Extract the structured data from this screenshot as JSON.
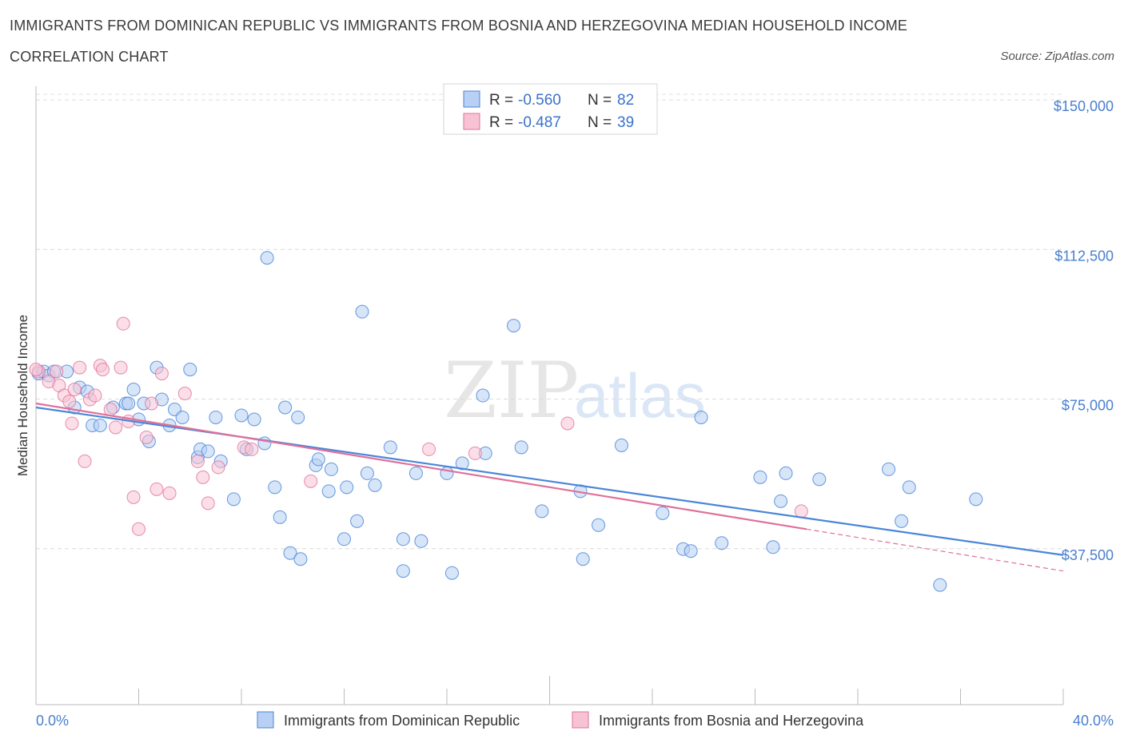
{
  "header": {
    "title": "IMMIGRANTS FROM DOMINICAN REPUBLIC VS IMMIGRANTS FROM BOSNIA AND HERZEGOVINA MEDIAN HOUSEHOLD INCOME",
    "subtitle": "CORRELATION CHART",
    "source": "Source: ZipAtlas.com"
  },
  "watermark": {
    "zip": "ZIP",
    "atlas": "atlas"
  },
  "colors": {
    "blue": "#4a86d8",
    "blue_fill": "#b7d0f3",
    "pink": "#e0709a",
    "pink_fill": "#f7c3d4",
    "grid": "#dddddd",
    "tick_label": "#4a7fd0"
  },
  "legend": {
    "rows": [
      {
        "r_label": "R = ",
        "r_value": "-0.560",
        "n_label": "N = ",
        "n_value": "82"
      },
      {
        "r_label": "R = ",
        "r_value": "-0.487",
        "n_label": "N = ",
        "n_value": "39"
      }
    ]
  },
  "chart_data": {
    "type": "scatter",
    "title": "IMMIGRANTS FROM DOMINICAN REPUBLIC VS IMMIGRANTS FROM BOSNIA AND HERZEGOVINA MEDIAN HOUSEHOLD INCOME",
    "xlabel": "",
    "ylabel": "Median Household Income",
    "xlim": [
      0,
      40
    ],
    "ylim": [
      0,
      150000
    ],
    "x_tick_labels": {
      "min": "0.0%",
      "max": "40.0%"
    },
    "y_ticks": [
      {
        "value": 37500,
        "label": "$37,500"
      },
      {
        "value": 75000,
        "label": "$75,000"
      },
      {
        "value": 112500,
        "label": "$112,500"
      },
      {
        "value": 150000,
        "label": "$150,000"
      }
    ],
    "grid": true,
    "series": [
      {
        "name": "Immigrants from Dominican Republic",
        "color": "#4a86d8",
        "trend": {
          "x0": 0,
          "y0": 74500,
          "x1": 40,
          "y1": 37500,
          "dashed_from": null
        },
        "points": [
          [
            0.1,
            83000
          ],
          [
            0.3,
            83500
          ],
          [
            0.5,
            82500
          ],
          [
            0.7,
            83500
          ],
          [
            1.2,
            83500
          ],
          [
            1.5,
            74500
          ],
          [
            1.7,
            79500
          ],
          [
            2.0,
            78500
          ],
          [
            2.2,
            70000
          ],
          [
            2.5,
            70000
          ],
          [
            3.0,
            74500
          ],
          [
            3.5,
            75500
          ],
          [
            3.6,
            75500
          ],
          [
            3.8,
            79000
          ],
          [
            4.0,
            71500
          ],
          [
            4.2,
            75500
          ],
          [
            4.4,
            66000
          ],
          [
            4.7,
            84500
          ],
          [
            4.9,
            76500
          ],
          [
            5.2,
            70000
          ],
          [
            5.4,
            74000
          ],
          [
            5.7,
            72000
          ],
          [
            6.0,
            84000
          ],
          [
            6.3,
            62000
          ],
          [
            6.4,
            64000
          ],
          [
            6.7,
            63500
          ],
          [
            7.0,
            72000
          ],
          [
            7.2,
            61000
          ],
          [
            7.7,
            51500
          ],
          [
            8.0,
            72500
          ],
          [
            8.2,
            64000
          ],
          [
            8.5,
            71500
          ],
          [
            8.9,
            65500
          ],
          [
            9.0,
            112000
          ],
          [
            9.3,
            54500
          ],
          [
            9.5,
            47000
          ],
          [
            9.7,
            74500
          ],
          [
            9.9,
            38000
          ],
          [
            10.2,
            72000
          ],
          [
            10.3,
            36500
          ],
          [
            10.9,
            60000
          ],
          [
            11.0,
            61500
          ],
          [
            11.4,
            53500
          ],
          [
            11.5,
            59000
          ],
          [
            12.0,
            41500
          ],
          [
            12.1,
            54500
          ],
          [
            12.5,
            46000
          ],
          [
            12.7,
            98500
          ],
          [
            12.9,
            58000
          ],
          [
            13.2,
            55000
          ],
          [
            13.8,
            64500
          ],
          [
            14.3,
            41500
          ],
          [
            14.3,
            33500
          ],
          [
            14.8,
            58000
          ],
          [
            15.0,
            41000
          ],
          [
            16.0,
            58000
          ],
          [
            16.2,
            33000
          ],
          [
            16.6,
            60500
          ],
          [
            17.4,
            77500
          ],
          [
            17.5,
            63000
          ],
          [
            18.6,
            95000
          ],
          [
            18.9,
            64500
          ],
          [
            19.7,
            48500
          ],
          [
            21.2,
            53500
          ],
          [
            21.3,
            36500
          ],
          [
            21.9,
            45000
          ],
          [
            22.8,
            65000
          ],
          [
            24.4,
            48000
          ],
          [
            25.2,
            39000
          ],
          [
            25.5,
            38500
          ],
          [
            25.9,
            72000
          ],
          [
            26.7,
            40500
          ],
          [
            28.2,
            57000
          ],
          [
            28.7,
            39500
          ],
          [
            29.0,
            51000
          ],
          [
            29.2,
            58000
          ],
          [
            30.5,
            56500
          ],
          [
            33.2,
            59000
          ],
          [
            33.7,
            46000
          ],
          [
            34.0,
            54500
          ],
          [
            35.2,
            30000
          ],
          [
            36.6,
            51500
          ]
        ]
      },
      {
        "name": "Immigrants from Bosnia and Herzegovina",
        "color": "#e0709a",
        "trend": {
          "x0": 0,
          "y0": 75500,
          "x1": 30,
          "y1": 44000,
          "dashed_to_x": 40,
          "dashed_to_y": 33500
        },
        "points": [
          [
            0.1,
            83500
          ],
          [
            0.5,
            81000
          ],
          [
            0.8,
            83500
          ],
          [
            0.9,
            80000
          ],
          [
            1.1,
            77500
          ],
          [
            1.3,
            76000
          ],
          [
            1.4,
            70500
          ],
          [
            1.5,
            79000
          ],
          [
            1.7,
            84500
          ],
          [
            1.9,
            61000
          ],
          [
            2.1,
            76500
          ],
          [
            2.3,
            77500
          ],
          [
            2.5,
            85000
          ],
          [
            2.6,
            84000
          ],
          [
            2.9,
            74000
          ],
          [
            3.1,
            69500
          ],
          [
            3.3,
            84500
          ],
          [
            3.4,
            95500
          ],
          [
            3.6,
            71000
          ],
          [
            3.8,
            52000
          ],
          [
            4.0,
            44000
          ],
          [
            4.3,
            67000
          ],
          [
            4.5,
            75500
          ],
          [
            4.7,
            54000
          ],
          [
            4.9,
            83000
          ],
          [
            5.2,
            53000
          ],
          [
            5.8,
            78000
          ],
          [
            6.3,
            61000
          ],
          [
            6.5,
            57000
          ],
          [
            6.7,
            50500
          ],
          [
            7.1,
            59500
          ],
          [
            8.1,
            64500
          ],
          [
            8.4,
            64000
          ],
          [
            10.7,
            56000
          ],
          [
            15.3,
            64000
          ],
          [
            17.1,
            63000
          ],
          [
            20.7,
            70500
          ],
          [
            29.8,
            48500
          ],
          [
            0.0,
            84000
          ]
        ]
      }
    ]
  },
  "bottom_legend": {
    "blue_label": "Immigrants from Dominican Republic",
    "pink_label": "Immigrants from Bosnia and Herzegovina"
  }
}
